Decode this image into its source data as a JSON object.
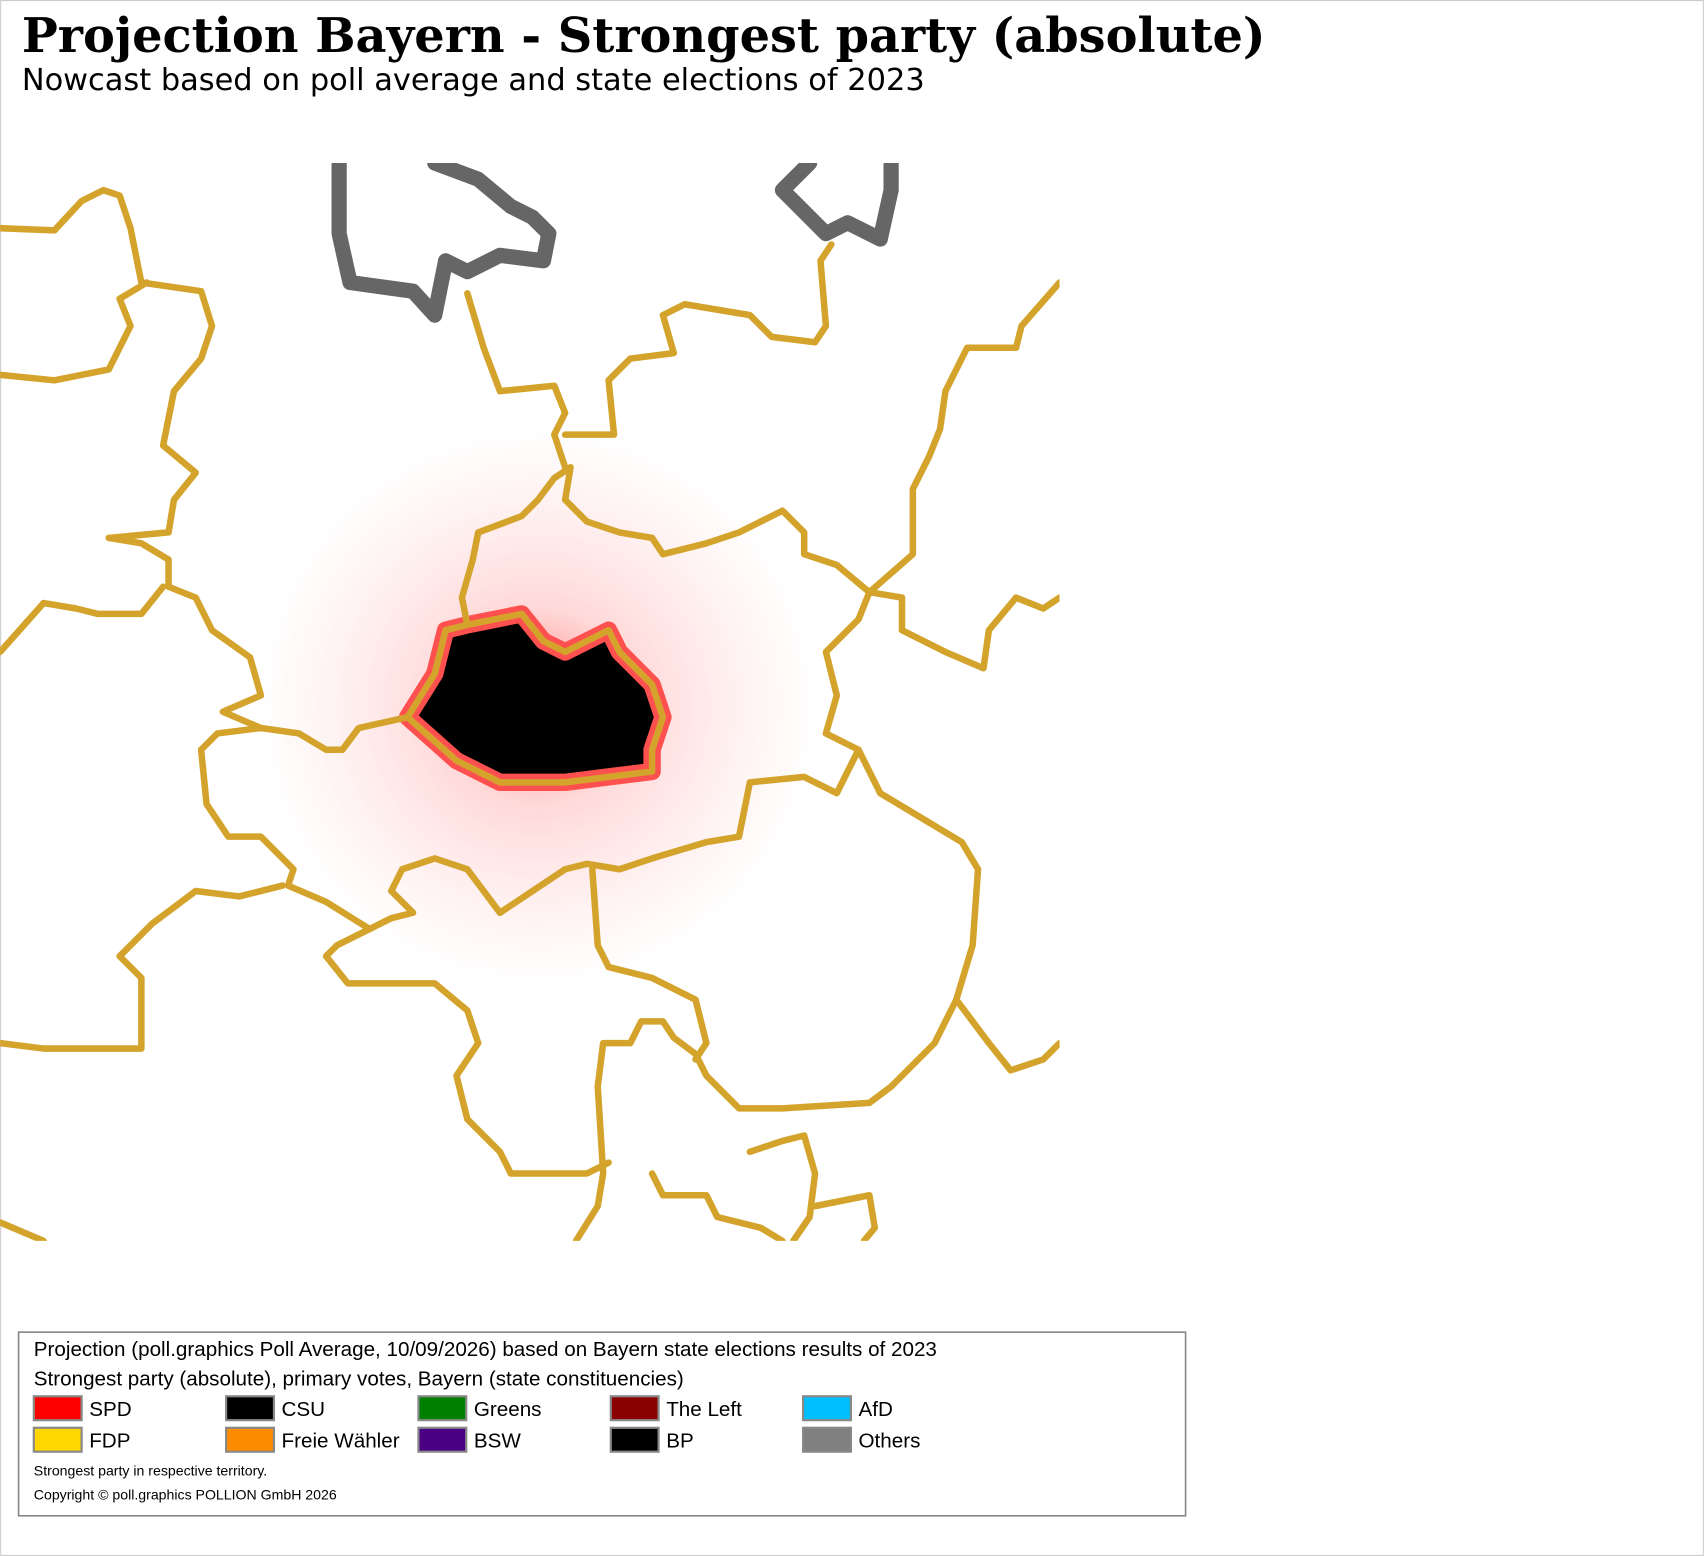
{
  "header": {
    "title": "Projection Bayern - Strongest party (absolute)",
    "subtitle": "Nowcast based on poll average and state elections of 2023"
  },
  "legend": {
    "lines": [
      "Projection (poll.graphics Poll Average, 10/09/2026) based on Bayern state elections results of 2023",
      "Strongest party (absolute), primary votes, Bayern (state constituencies)"
    ],
    "items": [
      {
        "label": "SPD",
        "color": "#ff0000"
      },
      {
        "label": "CSU",
        "color": "#000000"
      },
      {
        "label": "Greens",
        "color": "#008000"
      },
      {
        "label": "The Left",
        "color": "#8b0000"
      },
      {
        "label": "AfD",
        "color": "#00bfff"
      },
      {
        "label": "FDP",
        "color": "#ffd700"
      },
      {
        "label": "Freie Wähler",
        "color": "#ff8c00"
      },
      {
        "label": "BSW",
        "color": "#4b0082"
      },
      {
        "label": "BP",
        "color": "#000000"
      },
      {
        "label": "Others",
        "color": "#808080"
      }
    ],
    "notes": [
      "Strongest party in respective territory.",
      "Copyright © poll.graphics POLLION GmbH 2026"
    ]
  }
}
